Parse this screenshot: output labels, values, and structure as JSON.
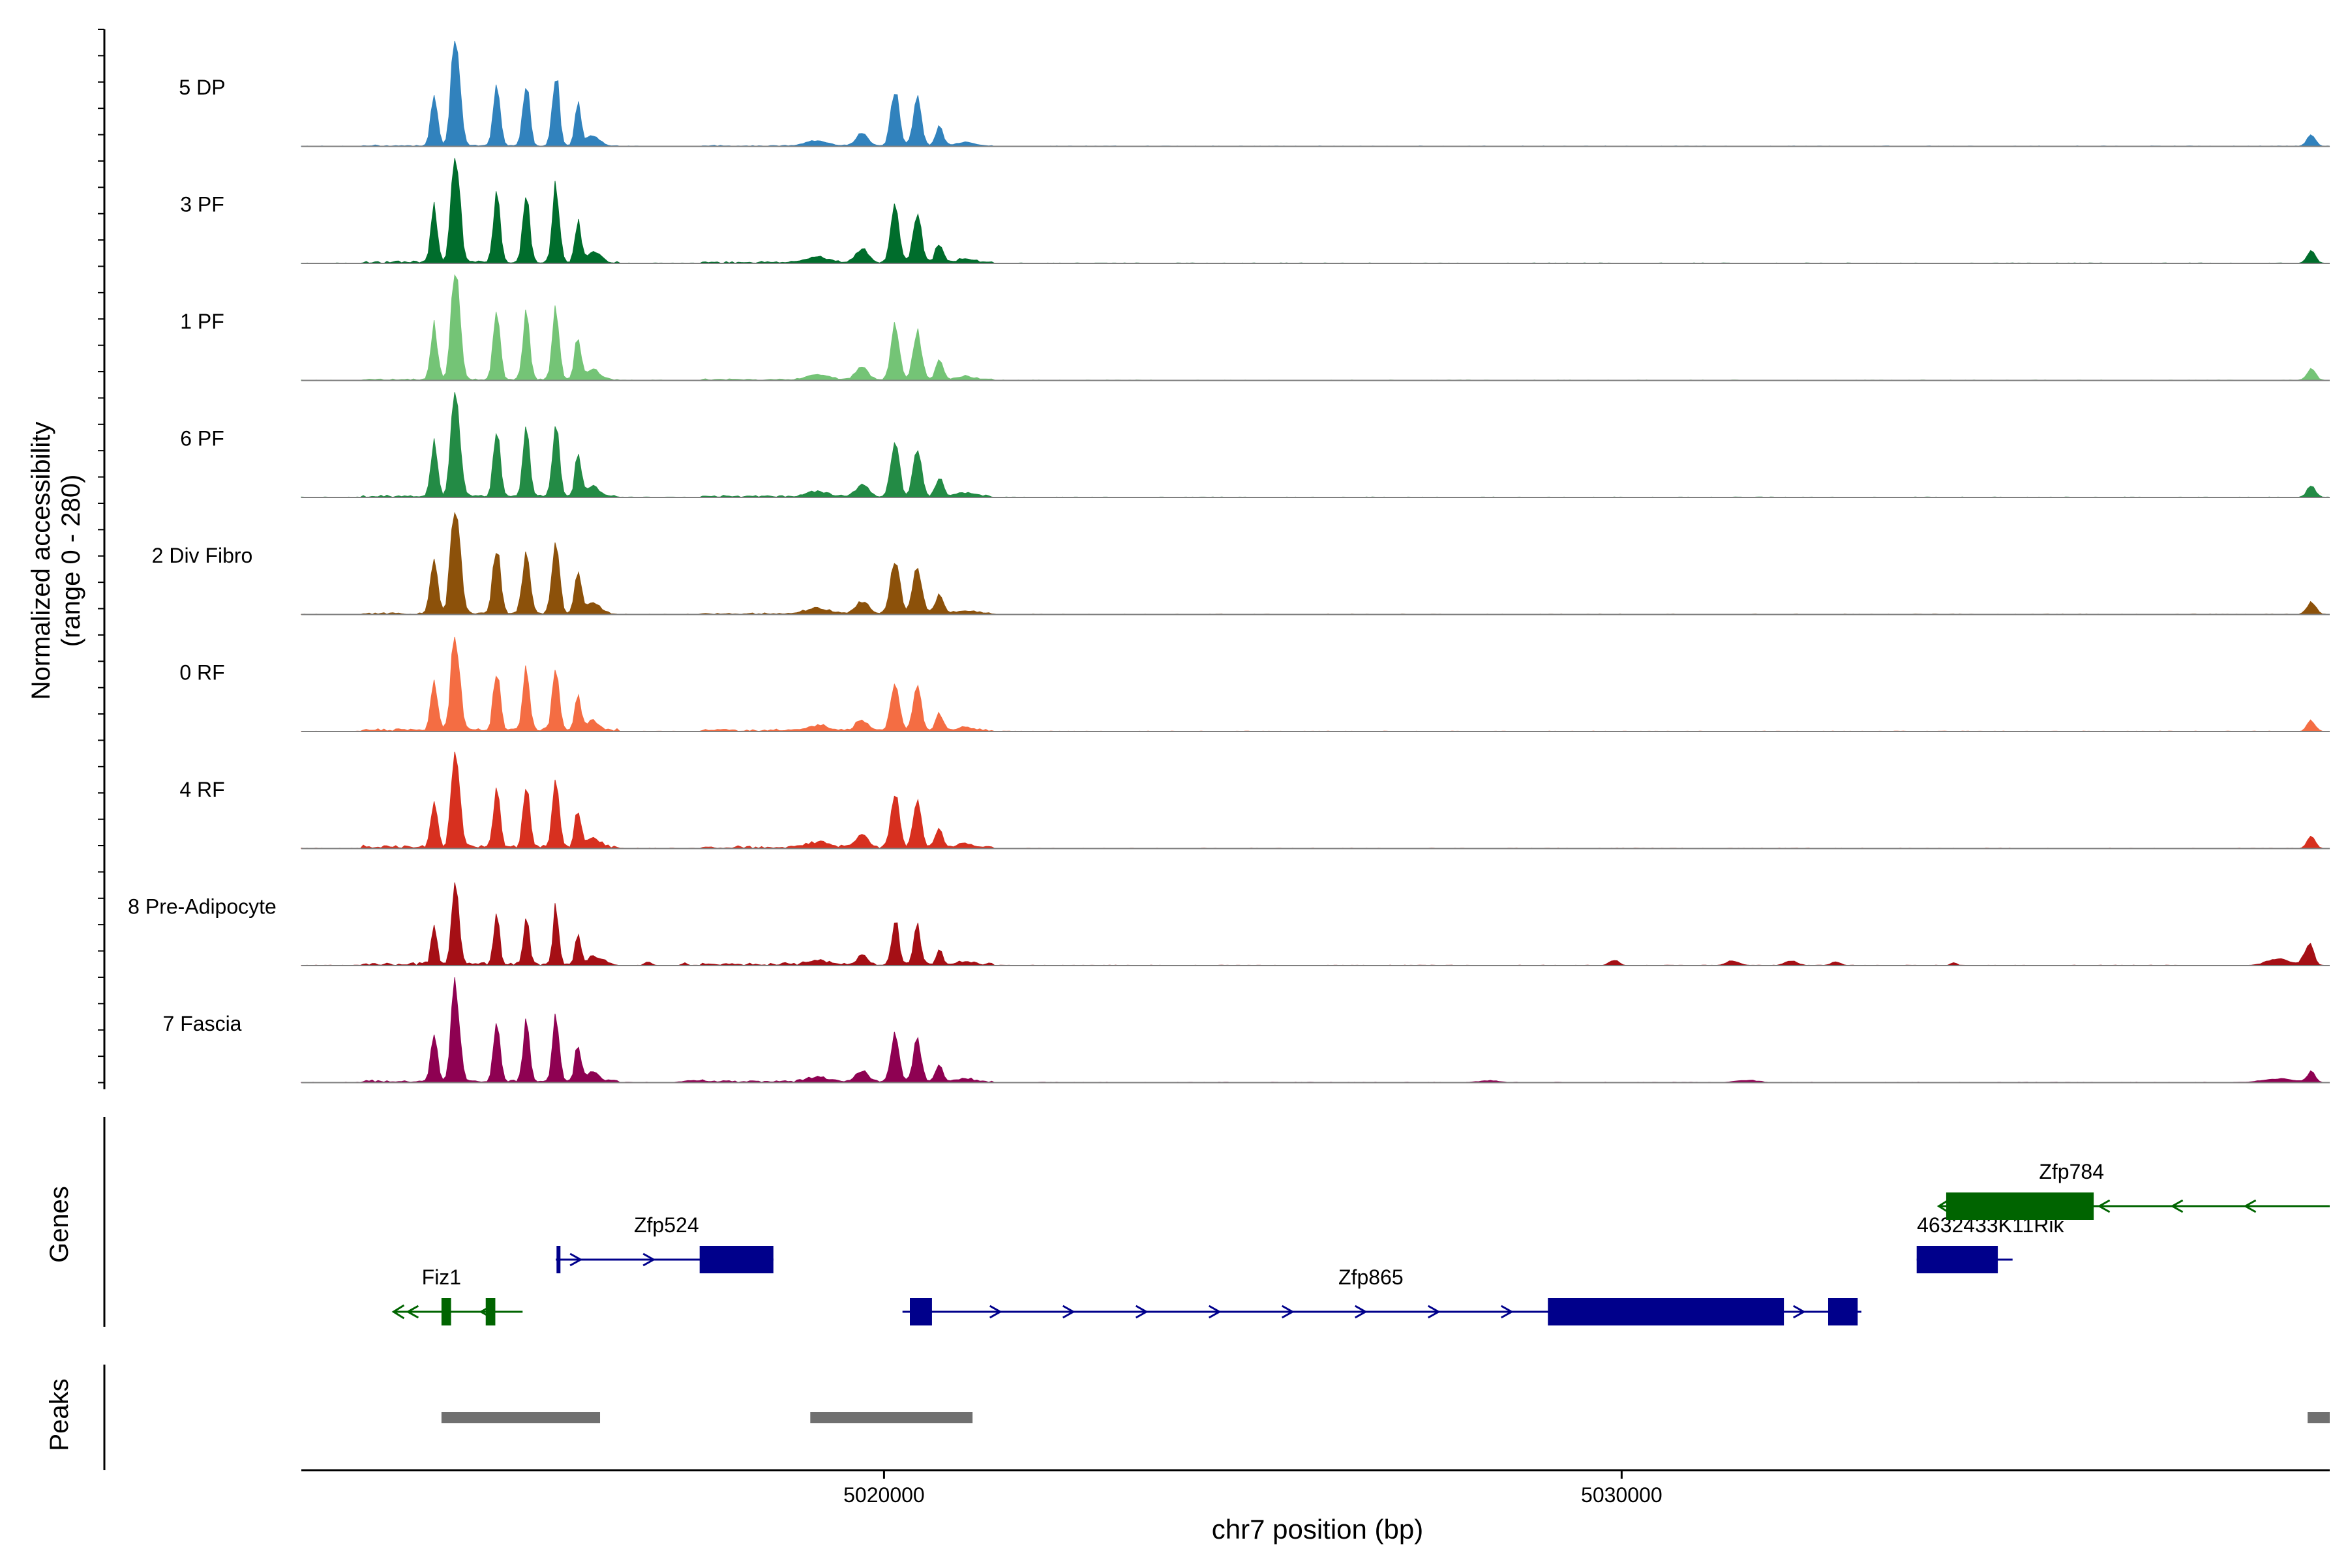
{
  "chart_data": {
    "type": "area",
    "title": "",
    "xlabel": "chr7 position (bp)",
    "ylabel_line1": "Normalized accessibility",
    "ylabel_line2": "(range 0 - 280)",
    "ylim": [
      0,
      280
    ],
    "xlim": [
      5012100,
      5039600
    ],
    "x_ticks": [
      5020000,
      5030000
    ],
    "x_tick_labels": [
      "5020000",
      "5030000"
    ],
    "genes_label": "Genes",
    "peaks_label": "Peaks",
    "peak_model": [
      [
        5013900,
        150,
        45
      ],
      [
        5014150,
        90,
        40
      ],
      [
        5014200,
        270,
        55
      ],
      [
        5014750,
        195,
        45
      ],
      [
        5015150,
        190,
        45
      ],
      [
        5015550,
        210,
        45
      ],
      [
        5015850,
        120,
        40
      ],
      [
        5016050,
        30,
        90
      ],
      [
        5019100,
        15,
        150
      ],
      [
        5019700,
        35,
        80
      ],
      [
        5020150,
        165,
        55
      ],
      [
        5020450,
        135,
        55
      ],
      [
        5020750,
        55,
        50
      ],
      [
        5021100,
        10,
        120
      ],
      [
        5039350,
        35,
        55
      ]
    ],
    "series": [
      {
        "name": "5 DP",
        "color": "#3182BD",
        "scale": 0.92,
        "spread": 1.0,
        "flank": 0.4
      },
      {
        "name": "3 PF",
        "color": "#006D2C",
        "scale": 0.95,
        "spread": 1.0,
        "flank": 1.0
      },
      {
        "name": "1 PF",
        "color": "#74C476",
        "scale": 0.95,
        "spread": 1.0,
        "flank": 0.7
      },
      {
        "name": "6 PF",
        "color": "#238B45",
        "scale": 0.9,
        "spread": 1.0,
        "flank": 1.0
      },
      {
        "name": "2 Div Fibro",
        "color": "#8C510A",
        "scale": 0.92,
        "spread": 1.1,
        "flank": 0.7
      },
      {
        "name": "0 RF",
        "color": "#F46D43",
        "scale": 0.82,
        "spread": 1.0,
        "flank": 1.2
      },
      {
        "name": "4 RF",
        "color": "#D7301F",
        "scale": 0.88,
        "spread": 0.95,
        "flank": 1.4
      },
      {
        "name": "8 Pre-Adipocyte",
        "color": "#A50F15",
        "scale": 0.75,
        "spread": 0.8,
        "flank": 1.3,
        "extra": [
          [
            5016200,
            12,
            40
          ],
          [
            5016800,
            10,
            40
          ],
          [
            5017300,
            8,
            30
          ],
          [
            5029900,
            14,
            60
          ],
          [
            5031500,
            12,
            80
          ],
          [
            5032300,
            12,
            80
          ],
          [
            5032900,
            10,
            60
          ],
          [
            5034500,
            8,
            40
          ],
          [
            5038900,
            18,
            150
          ],
          [
            5039300,
            40,
            60
          ]
        ]
      },
      {
        "name": "7 Fascia",
        "color": "#8E0152",
        "scale": 0.82,
        "spread": 0.95,
        "flank": 1.0,
        "extra": [
          [
            5017400,
            5,
            120
          ],
          [
            5028200,
            5,
            120
          ],
          [
            5031700,
            6,
            140
          ],
          [
            5038900,
            10,
            200
          ]
        ]
      }
    ],
    "genes": [
      {
        "name": "Fiz1",
        "strand": "-",
        "color": "#006400",
        "row": 3,
        "line": [
          5013350,
          5015100
        ],
        "exons": [
          [
            5014000,
            5014130
          ],
          [
            5014600,
            5014730
          ]
        ],
        "label_x": 5014000
      },
      {
        "name": "Zfp524",
        "strand": "+",
        "color": "#00008B",
        "row": 2,
        "line": [
          5015550,
          5018500
        ],
        "exons": [
          [
            5015560,
            5015610
          ],
          [
            5017500,
            5018500
          ]
        ],
        "label_x": 5017050
      },
      {
        "name": "Zfp865",
        "strand": "+",
        "color": "#00008B",
        "row": 3,
        "line": [
          5020250,
          5033250
        ],
        "exons": [
          [
            5020350,
            5020650
          ],
          [
            5029000,
            5032200
          ],
          [
            5032800,
            5033200
          ]
        ],
        "label_x": 5026600
      },
      {
        "name": "4632433K11Rik",
        "strand": "+",
        "color": "#00008B",
        "row": 2,
        "line": [
          5034000,
          5035300
        ],
        "exons": [
          [
            5034000,
            5035100
          ]
        ],
        "label_x": 5035000
      },
      {
        "name": "Zfp784",
        "strand": "-",
        "color": "#006400",
        "row": 1,
        "line": [
          5034300,
          5039600
        ],
        "exons": [
          [
            5034400,
            5036400
          ]
        ],
        "label_x": 5036100
      }
    ],
    "peaks": [
      [
        5014000,
        5016150
      ],
      [
        5019000,
        5021200
      ],
      [
        5039300,
        5039600
      ]
    ]
  }
}
